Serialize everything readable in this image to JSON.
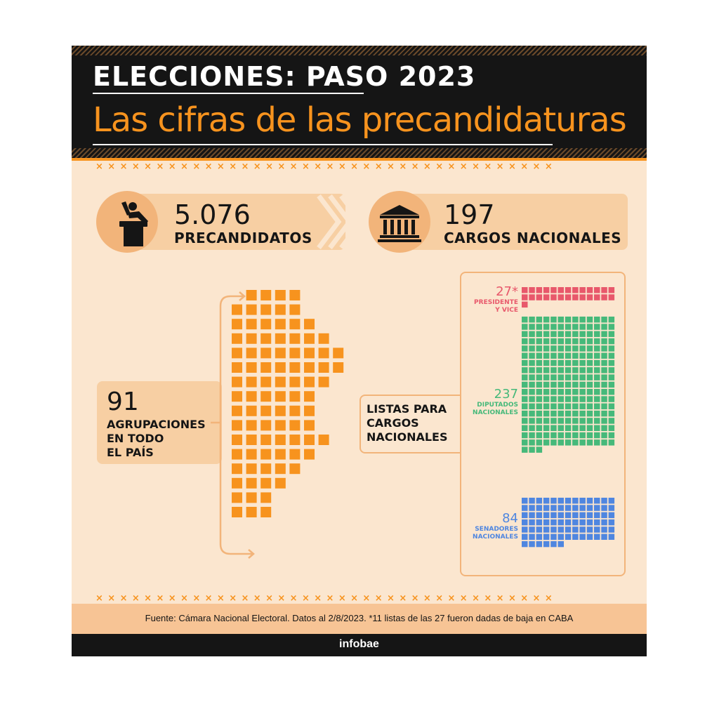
{
  "header": {
    "kicker": "ELECCIONES: PASO 2023",
    "title": "Las cifras de las precandidaturas"
  },
  "stats": {
    "precandidates_value": "5.076",
    "precandidates_label": "PRECANDIDATOS",
    "offices_value": "197",
    "offices_label": "CARGOS NACIONALES"
  },
  "groupings": {
    "value": "91",
    "label_lines": [
      "AGRUPACIONES",
      "EN TODO",
      "EL PAÍS"
    ],
    "count": 91
  },
  "lists": {
    "label_lines": [
      "LISTAS PARA",
      "CARGOS",
      "NACIONALES"
    ],
    "groups": [
      {
        "value": "27*",
        "label_lines": [
          "PRESIDENTE",
          "Y VICE"
        ],
        "count": 27,
        "color": "#e8586b"
      },
      {
        "value": "237",
        "label_lines": [
          "DIPUTADOS",
          "NACIONALES"
        ],
        "count": 237,
        "color": "#46b97a"
      },
      {
        "value": "84",
        "label_lines": [
          "SENADORES",
          "NACIONALES"
        ],
        "count": 84,
        "color": "#4f86e0"
      }
    ]
  },
  "footer": {
    "source": "Fuente: Cámara Nacional Electoral. Datos al 2/8/2023. *11 listas de las 27 fueron dadas de baja en CABA",
    "brand": "infobae"
  },
  "colors": {
    "accent": "#f7931e",
    "background": "#fbe6cf",
    "dark": "#151515"
  },
  "icons": [
    "speaker-at-podium-icon",
    "government-building-icon"
  ]
}
